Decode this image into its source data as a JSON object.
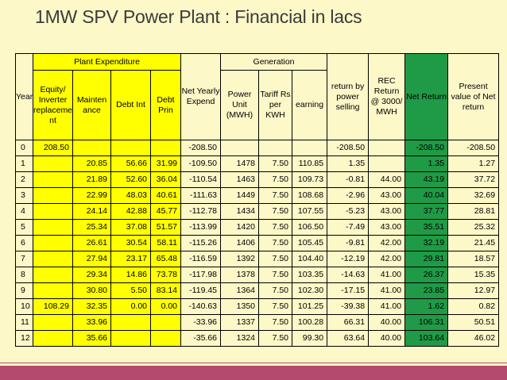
{
  "title": "1MW SPV Power Plant : Financial in lacs",
  "headers": {
    "year": "Year",
    "plant_expenditure": "Plant Expenditure",
    "equity": "Equity/ Inverter replaceme nt",
    "maintenance": "Mainten ance",
    "debt_int": "Debt Int",
    "debt_prin": "Debt Prin",
    "net_yearly_expend": "Net Yearly Expend",
    "generation": "Generation",
    "power_unit": "Power Unit (MWH)",
    "tariff": "Tariff Rs per KWH",
    "earning": "earning",
    "return_by_power": "return by power selling",
    "rec_return": "REC Return @ 3000/ MWH",
    "net_return": "Net Return",
    "present_value": "Present value of Net return"
  },
  "rows": [
    {
      "year": "0",
      "equity": "208.50",
      "maint": "",
      "debt_int": "",
      "debt_prin": "",
      "net_exp": "-208.50",
      "power": "",
      "tariff": "",
      "earning": "",
      "ret": "-208.50",
      "rec": "",
      "net_ret": "-208.50",
      "pv": "-208.50"
    },
    {
      "year": "1",
      "equity": "",
      "maint": "20.85",
      "debt_int": "56.66",
      "debt_prin": "31.99",
      "net_exp": "-109.50",
      "power": "1478",
      "tariff": "7.50",
      "earning": "110.85",
      "ret": "1.35",
      "rec": "",
      "net_ret": "1.35",
      "pv": "1.27"
    },
    {
      "year": "2",
      "equity": "",
      "maint": "21.89",
      "debt_int": "52.60",
      "debt_prin": "36.04",
      "net_exp": "-110.54",
      "power": "1463",
      "tariff": "7.50",
      "earning": "109.73",
      "ret": "-0.81",
      "rec": "44.00",
      "net_ret": "43.19",
      "pv": "37.72"
    },
    {
      "year": "3",
      "equity": "",
      "maint": "22.99",
      "debt_int": "48.03",
      "debt_prin": "40.61",
      "net_exp": "-111.63",
      "power": "1449",
      "tariff": "7.50",
      "earning": "108.68",
      "ret": "-2.96",
      "rec": "43.00",
      "net_ret": "40.04",
      "pv": "32.69"
    },
    {
      "year": "4",
      "equity": "",
      "maint": "24.14",
      "debt_int": "42.88",
      "debt_prin": "45.77",
      "net_exp": "-112.78",
      "power": "1434",
      "tariff": "7.50",
      "earning": "107.55",
      "ret": "-5.23",
      "rec": "43.00",
      "net_ret": "37.77",
      "pv": "28.81"
    },
    {
      "year": "5",
      "equity": "",
      "maint": "25.34",
      "debt_int": "37.08",
      "debt_prin": "51.57",
      "net_exp": "-113.99",
      "power": "1420",
      "tariff": "7.50",
      "earning": "106.50",
      "ret": "-7.49",
      "rec": "43.00",
      "net_ret": "35.51",
      "pv": "25.32"
    },
    {
      "year": "6",
      "equity": "",
      "maint": "26.61",
      "debt_int": "30.54",
      "debt_prin": "58.11",
      "net_exp": "-115.26",
      "power": "1406",
      "tariff": "7.50",
      "earning": "105.45",
      "ret": "-9.81",
      "rec": "42.00",
      "net_ret": "32.19",
      "pv": "21.45"
    },
    {
      "year": "7",
      "equity": "",
      "maint": "27.94",
      "debt_int": "23.17",
      "debt_prin": "65.48",
      "net_exp": "-116.59",
      "power": "1392",
      "tariff": "7.50",
      "earning": "104.40",
      "ret": "-12.19",
      "rec": "42.00",
      "net_ret": "29.81",
      "pv": "18.57"
    },
    {
      "year": "8",
      "equity": "",
      "maint": "29.34",
      "debt_int": "14.86",
      "debt_prin": "73.78",
      "net_exp": "-117.98",
      "power": "1378",
      "tariff": "7.50",
      "earning": "103.35",
      "ret": "-14.63",
      "rec": "41.00",
      "net_ret": "26.37",
      "pv": "15.35"
    },
    {
      "year": "9",
      "equity": "",
      "maint": "30.80",
      "debt_int": "5.50",
      "debt_prin": "83.14",
      "net_exp": "-119.45",
      "power": "1364",
      "tariff": "7.50",
      "earning": "102.30",
      "ret": "-17.15",
      "rec": "41.00",
      "net_ret": "23.85",
      "pv": "12.97"
    },
    {
      "year": "10",
      "equity": "108.29",
      "maint": "32.35",
      "debt_int": "0.00",
      "debt_prin": "0.00",
      "net_exp": "-140.63",
      "power": "1350",
      "tariff": "7.50",
      "earning": "101.25",
      "ret": "-39.38",
      "rec": "41.00",
      "net_ret": "1.62",
      "pv": "0.82"
    },
    {
      "year": "11",
      "equity": "",
      "maint": "33.96",
      "debt_int": "",
      "debt_prin": "",
      "net_exp": "-33.96",
      "power": "1337",
      "tariff": "7.50",
      "earning": "100.28",
      "ret": "66.31",
      "rec": "40.00",
      "net_ret": "106.31",
      "pv": "50.51"
    },
    {
      "year": "12",
      "equity": "",
      "maint": "35.66",
      "debt_int": "",
      "debt_prin": "",
      "net_exp": "-35.66",
      "power": "1324",
      "tariff": "7.50",
      "earning": "99.30",
      "ret": "63.64",
      "rec": "40.00",
      "net_ret": "103.64",
      "pv": "46.02"
    }
  ],
  "colors": {
    "background": "#fdf8c8",
    "yellow": "#ffff00",
    "green": "#1f9a46",
    "accent_bar": "#b44b6f"
  }
}
